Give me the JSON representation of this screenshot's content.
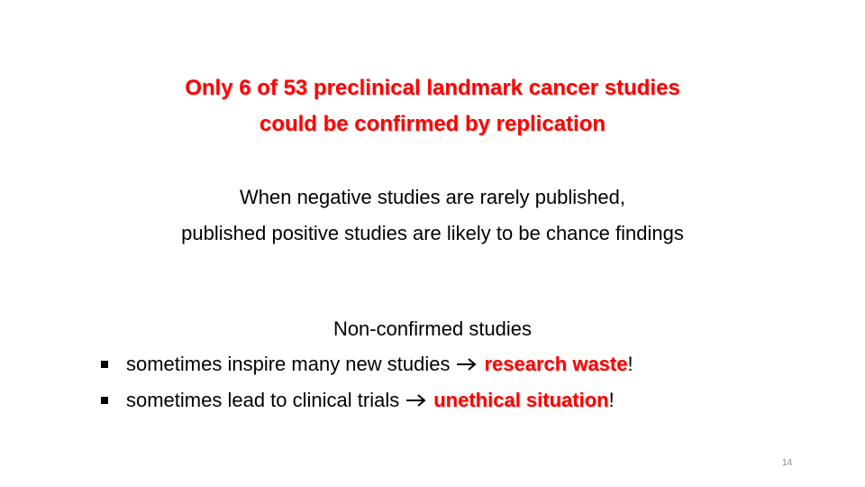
{
  "title": {
    "lines": [
      "Only 6 of 53 preclinical landmark cancer studies",
      "could be confirmed by replication"
    ]
  },
  "statement": {
    "lines": [
      "When negative studies are rarely published,",
      "published positive studies are likely to be chance findings"
    ]
  },
  "consequences": {
    "heading": "Non-confirmed studies",
    "bullets": [
      {
        "text": "sometimes inspire many new studies",
        "result": "research waste",
        "suffix": "!"
      },
      {
        "text": "sometimes lead to clinical trials",
        "result": "unethical situation",
        "suffix": "!"
      }
    ]
  },
  "page_number": "14"
}
